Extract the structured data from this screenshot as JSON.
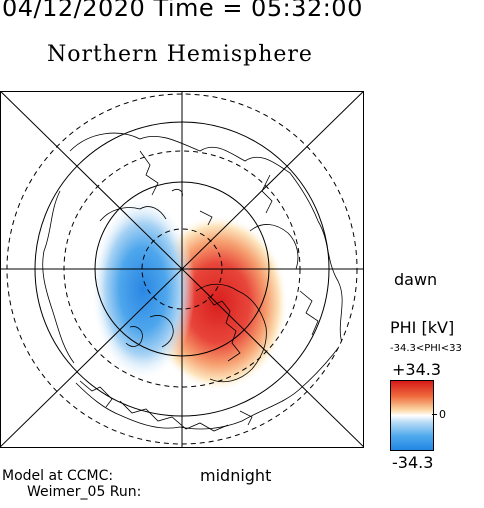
{
  "header": {
    "datetime": "04/12/2020 Time = 05:32:00",
    "hemisphere": "Northern Hemisphere"
  },
  "map": {
    "dawn_label": "dawn",
    "midnight_label": "midnight",
    "positive_cell_color": "#e02a26",
    "negative_cell_color": "#2f8fe6"
  },
  "colorbar": {
    "title": "PHI [kV]",
    "range_text": "-34.3<PHI<33",
    "max": "+34.3",
    "zero": "0",
    "min": "-34.3"
  },
  "footer": {
    "line1": "Model at CCMC:",
    "line2": "Weimer_05 Run:"
  }
}
